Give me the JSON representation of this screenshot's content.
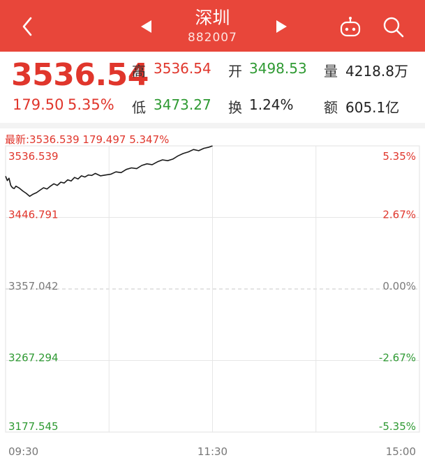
{
  "header": {
    "title": "深圳",
    "code": "882007"
  },
  "quote": {
    "price": "3536.54",
    "change": "179.50",
    "change_pct": "5.35%",
    "high_label": "高",
    "high": "3536.54",
    "open_label": "开",
    "open": "3498.53",
    "volume_label": "量",
    "volume": "4218.8万",
    "low_label": "低",
    "low": "3473.27",
    "turnover_label": "换",
    "turnover": "1.24%",
    "amount_label": "额",
    "amount": "605.1亿"
  },
  "chart": {
    "latest_text": "最新:3536.539 179.497 5.347%",
    "colors": {
      "up": "#e0362c",
      "flat": "#7a7a7a",
      "down": "#2f9a33",
      "line": "#1a1a1a",
      "grid": "#e6e6e6"
    }
  },
  "chart_data": {
    "type": "line",
    "title": "",
    "xlabel": "",
    "ylabel": "",
    "ylim": [
      3177.545,
      3536.539
    ],
    "prev_close": 3357.042,
    "x_ticks": [
      "09:30",
      "11:30",
      "15:00"
    ],
    "y_ticks_left": [
      "3536.539",
      "3446.791",
      "3357.042",
      "3267.294",
      "3177.545"
    ],
    "y_ticks_right": [
      "5.35%",
      "2.67%",
      "0.00%",
      "-2.67%",
      "-5.35%"
    ],
    "x_minutes": [
      0,
      1,
      2,
      3,
      4,
      5,
      6,
      8,
      10,
      12,
      14,
      16,
      18,
      20,
      22,
      24,
      26,
      28,
      30,
      32,
      34,
      36,
      38,
      40,
      42,
      44,
      46,
      48,
      50,
      52,
      55,
      58,
      61,
      64,
      67,
      70,
      73,
      76,
      79,
      82,
      85,
      88,
      91,
      94,
      97,
      100,
      103,
      106,
      109,
      112,
      115,
      118,
      120
    ],
    "series": [
      {
        "values": [
          3498.5,
          3493.0,
          3496.0,
          3487.0,
          3484.0,
          3483.0,
          3486.0,
          3483.5,
          3480.0,
          3477.0,
          3473.3,
          3476.0,
          3478.0,
          3481.0,
          3484.0,
          3482.5,
          3486.0,
          3489.0,
          3487.0,
          3491.0,
          3490.0,
          3494.0,
          3492.5,
          3497.0,
          3495.0,
          3499.0,
          3497.5,
          3500.0,
          3499.5,
          3502.0,
          3499.0,
          3500.0,
          3501.0,
          3504.0,
          3503.0,
          3507.0,
          3509.0,
          3508.0,
          3512.0,
          3514.0,
          3513.0,
          3516.5,
          3519.0,
          3518.0,
          3520.0,
          3524.0,
          3527.0,
          3529.0,
          3532.0,
          3530.5,
          3533.5,
          3535.0,
          3536.5
        ]
      }
    ]
  }
}
